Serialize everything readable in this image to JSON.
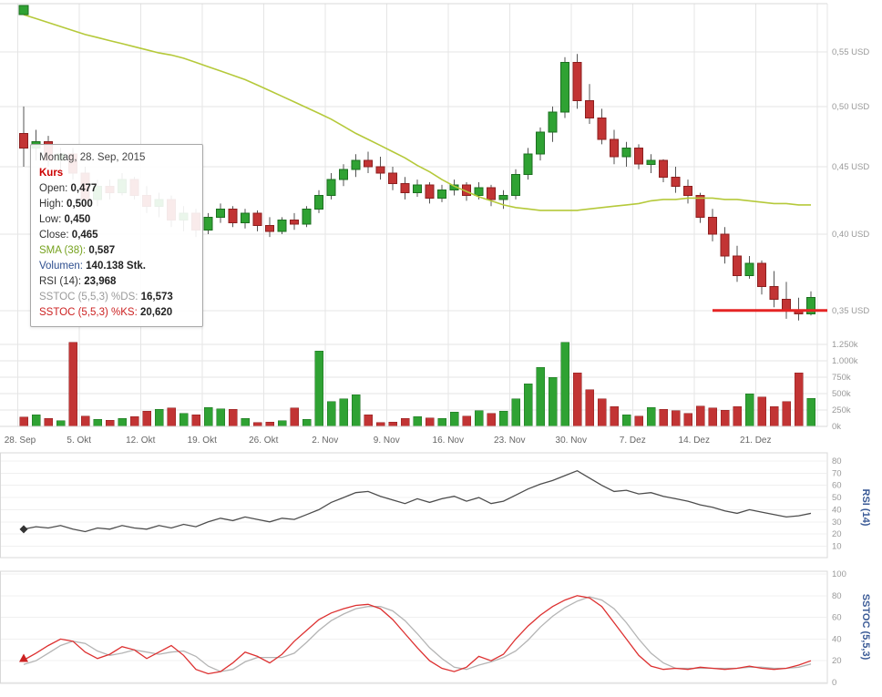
{
  "style": {
    "up": "#2fa233",
    "up_border": "#1c6f20",
    "down": "#c23434",
    "down_border": "#8c1f1f",
    "wick": "#555555",
    "sma": "#b5c93a",
    "support": "#e52525",
    "grid": "#e5e5e5",
    "grid_faint": "#f0f0f0",
    "border": "#d8d8d8",
    "axis_text": "#999999",
    "date_text": "#666666",
    "pane_label": "#3a5a96",
    "rsi_line": "#4d4d4d",
    "sstoc_k": "#dd3030",
    "sstoc_d": "#b4b4b4",
    "marker_green": "#2fa233",
    "marker_diamond": "#333333",
    "marker_triangle": "#cc2222",
    "tooltip_title_color": "#cc0000"
  },
  "tooltip": {
    "date": "Montag, 28. Sep, 2015",
    "title": "Kurs",
    "rows": [
      {
        "label": "Open:",
        "value": "0,477",
        "color": "#333333"
      },
      {
        "label": "High:",
        "value": "0,500",
        "color": "#333333"
      },
      {
        "label": "Low:",
        "value": "0,450",
        "color": "#333333"
      },
      {
        "label": "Close:",
        "value": "0,465",
        "color": "#333333"
      },
      {
        "label": "SMA (38):",
        "value": "0,587",
        "color": "#76a21e"
      },
      {
        "label": "Volumen:",
        "value": "140.138 Stk.",
        "color": "#2d4e8e"
      },
      {
        "label": "RSI (14):",
        "value": "23,968",
        "color": "#333333"
      },
      {
        "label": "SSTOC (5,5,3) %DS:",
        "value": "16,573",
        "color": "#9a9a9a"
      },
      {
        "label": "SSTOC (5,5,3) %KS:",
        "value": "20,620",
        "color": "#cc2222"
      }
    ]
  },
  "chart_data": [
    {
      "type": "candlestick",
      "name": "Kurs",
      "scale": "log",
      "ylim": [
        0.335,
        0.595
      ],
      "y_tick_values": [
        0.55,
        0.5,
        0.45,
        0.4,
        0.35
      ],
      "y_tick_labels": [
        "0,55 USD",
        "0,50 USD",
        "0,45 USD",
        "0,40 USD",
        "0,35 USD"
      ],
      "x_labels": [
        "28. Sep",
        "5. Okt",
        "12. Okt",
        "19. Okt",
        "26. Okt",
        "2. Nov",
        "9. Nov",
        "16. Nov",
        "23. Nov",
        "30. Nov",
        "7. Dez",
        "14. Dez",
        "21. Dez"
      ],
      "columns": [
        "open",
        "high",
        "low",
        "close"
      ],
      "candles": [
        [
          0.477,
          0.5,
          0.45,
          0.465
        ],
        [
          0.465,
          0.48,
          0.455,
          0.47
        ],
        [
          0.47,
          0.475,
          0.45,
          0.455
        ],
        [
          0.455,
          0.465,
          0.445,
          0.46
        ],
        [
          0.46,
          0.465,
          0.44,
          0.445
        ],
        [
          0.445,
          0.45,
          0.418,
          0.425
        ],
        [
          0.425,
          0.44,
          0.42,
          0.435
        ],
        [
          0.435,
          0.44,
          0.425,
          0.43
        ],
        [
          0.43,
          0.445,
          0.428,
          0.44
        ],
        [
          0.44,
          0.442,
          0.425,
          0.428
        ],
        [
          0.428,
          0.435,
          0.415,
          0.42
        ],
        [
          0.42,
          0.43,
          0.412,
          0.425
        ],
        [
          0.425,
          0.428,
          0.405,
          0.41
        ],
        [
          0.41,
          0.42,
          0.402,
          0.415
        ],
        [
          0.415,
          0.418,
          0.398,
          0.403
        ],
        [
          0.403,
          0.415,
          0.4,
          0.412
        ],
        [
          0.412,
          0.422,
          0.408,
          0.418
        ],
        [
          0.418,
          0.42,
          0.405,
          0.408
        ],
        [
          0.408,
          0.418,
          0.404,
          0.415
        ],
        [
          0.415,
          0.417,
          0.402,
          0.406
        ],
        [
          0.406,
          0.412,
          0.398,
          0.402
        ],
        [
          0.402,
          0.412,
          0.4,
          0.41
        ],
        [
          0.41,
          0.415,
          0.403,
          0.407
        ],
        [
          0.407,
          0.42,
          0.405,
          0.418
        ],
        [
          0.418,
          0.432,
          0.415,
          0.428
        ],
        [
          0.428,
          0.445,
          0.425,
          0.44
        ],
        [
          0.44,
          0.452,
          0.435,
          0.448
        ],
        [
          0.448,
          0.46,
          0.442,
          0.455
        ],
        [
          0.455,
          0.462,
          0.445,
          0.45
        ],
        [
          0.45,
          0.458,
          0.44,
          0.445
        ],
        [
          0.445,
          0.45,
          0.432,
          0.437
        ],
        [
          0.437,
          0.442,
          0.425,
          0.43
        ],
        [
          0.43,
          0.44,
          0.427,
          0.436
        ],
        [
          0.436,
          0.438,
          0.422,
          0.426
        ],
        [
          0.426,
          0.436,
          0.423,
          0.432
        ],
        [
          0.432,
          0.44,
          0.428,
          0.436
        ],
        [
          0.436,
          0.438,
          0.424,
          0.428
        ],
        [
          0.428,
          0.438,
          0.425,
          0.434
        ],
        [
          0.434,
          0.436,
          0.42,
          0.425
        ],
        [
          0.425,
          0.432,
          0.418,
          0.428
        ],
        [
          0.428,
          0.448,
          0.425,
          0.444
        ],
        [
          0.444,
          0.465,
          0.44,
          0.46
        ],
        [
          0.46,
          0.482,
          0.455,
          0.478
        ],
        [
          0.478,
          0.5,
          0.47,
          0.495
        ],
        [
          0.495,
          0.545,
          0.49,
          0.54
        ],
        [
          0.54,
          0.548,
          0.498,
          0.505
        ],
        [
          0.505,
          0.52,
          0.485,
          0.49
        ],
        [
          0.49,
          0.498,
          0.468,
          0.472
        ],
        [
          0.472,
          0.48,
          0.452,
          0.458
        ],
        [
          0.458,
          0.47,
          0.45,
          0.465
        ],
        [
          0.465,
          0.468,
          0.448,
          0.452
        ],
        [
          0.452,
          0.46,
          0.445,
          0.455
        ],
        [
          0.455,
          0.456,
          0.438,
          0.442
        ],
        [
          0.442,
          0.45,
          0.43,
          0.435
        ],
        [
          0.435,
          0.44,
          0.422,
          0.428
        ],
        [
          0.428,
          0.43,
          0.408,
          0.412
        ],
        [
          0.412,
          0.418,
          0.395,
          0.4
        ],
        [
          0.4,
          0.405,
          0.38,
          0.385
        ],
        [
          0.385,
          0.392,
          0.368,
          0.372
        ],
        [
          0.372,
          0.385,
          0.37,
          0.38
        ],
        [
          0.38,
          0.382,
          0.36,
          0.365
        ],
        [
          0.365,
          0.375,
          0.352,
          0.357
        ],
        [
          0.357,
          0.368,
          0.345,
          0.35
        ],
        [
          0.35,
          0.358,
          0.344,
          0.348
        ],
        [
          0.348,
          0.362,
          0.347,
          0.358
        ]
      ],
      "sma38": [
        0.587,
        0.583,
        0.579,
        0.575,
        0.571,
        0.567,
        0.564,
        0.561,
        0.558,
        0.555,
        0.552,
        0.549,
        0.547,
        0.544,
        0.54,
        0.536,
        0.532,
        0.528,
        0.524,
        0.519,
        0.514,
        0.509,
        0.504,
        0.499,
        0.494,
        0.489,
        0.483,
        0.477,
        0.472,
        0.467,
        0.462,
        0.457,
        0.451,
        0.446,
        0.44,
        0.435,
        0.431,
        0.427,
        0.424,
        0.421,
        0.419,
        0.418,
        0.417,
        0.417,
        0.417,
        0.417,
        0.418,
        0.419,
        0.42,
        0.421,
        0.422,
        0.424,
        0.425,
        0.425,
        0.426,
        0.426,
        0.426,
        0.425,
        0.425,
        0.424,
        0.423,
        0.422,
        0.422,
        0.421,
        0.421
      ],
      "support_line": {
        "value": 0.35,
        "from_index": 56
      }
    },
    {
      "type": "bar",
      "name": "Volumen",
      "unit": "Stk.",
      "y_tick_values": [
        1250,
        1000,
        750,
        500,
        250,
        0
      ],
      "y_tick_labels": [
        "1.250k",
        "1.000k",
        "750k",
        "500k",
        "250k",
        "0k"
      ],
      "values": [
        140,
        180,
        120,
        90,
        1280,
        160,
        110,
        95,
        120,
        150,
        230,
        260,
        280,
        200,
        180,
        290,
        270,
        260,
        120,
        60,
        70,
        90,
        280,
        110,
        1150,
        380,
        420,
        480,
        180,
        60,
        70,
        120,
        150,
        130,
        120,
        220,
        160,
        240,
        200,
        230,
        420,
        650,
        900,
        750,
        1280,
        820,
        560,
        420,
        300,
        180,
        160,
        290,
        260,
        240,
        200,
        310,
        280,
        250,
        300,
        500,
        450,
        300,
        380,
        820,
        430
      ]
    },
    {
      "type": "line",
      "name": "RSI (14)",
      "y_tick_values": [
        80,
        70,
        60,
        50,
        40,
        30,
        20,
        10
      ],
      "values": [
        23.968,
        26,
        25,
        27,
        24,
        22,
        25,
        24,
        27,
        25,
        24,
        27,
        25,
        28,
        26,
        30,
        33,
        31,
        34,
        32,
        30,
        33,
        32,
        36,
        40,
        46,
        50,
        54,
        55,
        51,
        48,
        45,
        49,
        46,
        49,
        51,
        47,
        50,
        45,
        47,
        52,
        57,
        61,
        64,
        68,
        72,
        66,
        60,
        55,
        56,
        53,
        54,
        51,
        49,
        47,
        44,
        42,
        39,
        37,
        40,
        38,
        36,
        34,
        35,
        37
      ]
    },
    {
      "type": "line",
      "name": "SSTOC (5,5,3)",
      "y_tick_values": [
        100,
        80,
        60,
        40,
        20,
        0
      ],
      "series": [
        {
          "name": "%KS",
          "color_key": "sstoc_k",
          "values": [
            20.62,
            27,
            34,
            40,
            38,
            28,
            22,
            26,
            33,
            30,
            22,
            28,
            34,
            25,
            12,
            8,
            10,
            18,
            28,
            24,
            18,
            26,
            38,
            48,
            58,
            64,
            68,
            71,
            72,
            68,
            58,
            45,
            32,
            20,
            13,
            10,
            14,
            24,
            20,
            26,
            40,
            52,
            62,
            70,
            76,
            80,
            78,
            70,
            55,
            40,
            25,
            15,
            12,
            13,
            12,
            14,
            13,
            12,
            13,
            15,
            13,
            12,
            13,
            16,
            20
          ]
        },
        {
          "name": "%DS",
          "color_key": "sstoc_d",
          "values": [
            16.573,
            20,
            27,
            34,
            38,
            36,
            29,
            25,
            27,
            30,
            28,
            26,
            28,
            29,
            24,
            15,
            10,
            12,
            19,
            23,
            23,
            23,
            27,
            37,
            48,
            57,
            63,
            68,
            70,
            70,
            66,
            57,
            45,
            32,
            22,
            14,
            12,
            16,
            19,
            23,
            29,
            39,
            51,
            61,
            69,
            75,
            79,
            76,
            68,
            55,
            40,
            27,
            18,
            13,
            13,
            13,
            13,
            13,
            13,
            14,
            14,
            13,
            13,
            14,
            17
          ]
        }
      ]
    }
  ]
}
